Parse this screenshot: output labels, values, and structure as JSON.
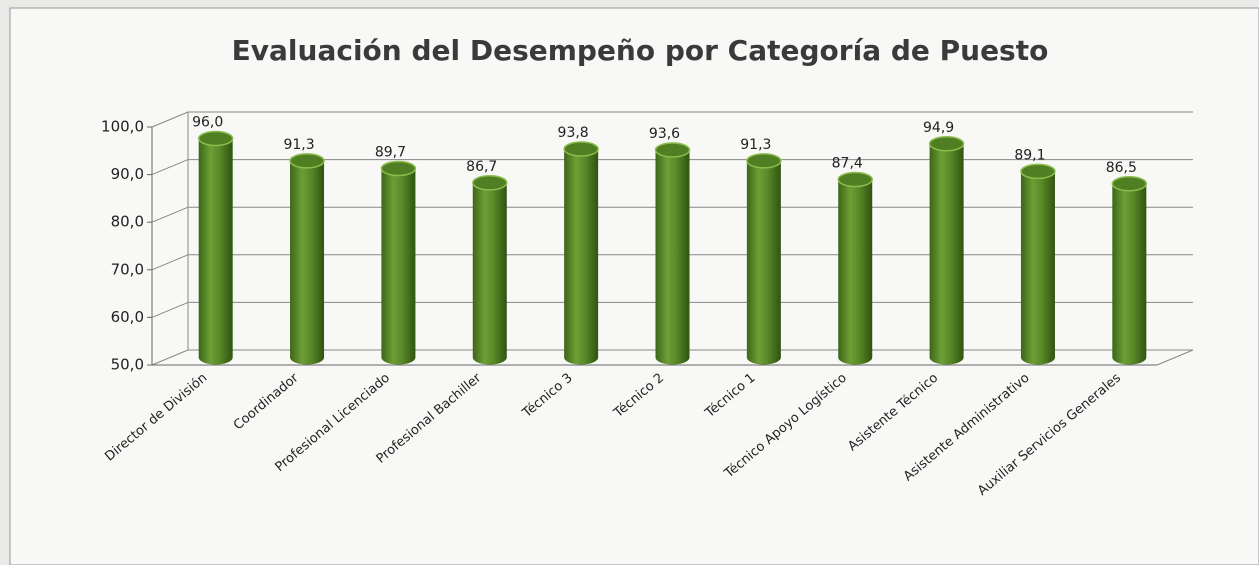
{
  "chart_data": {
    "type": "bar3d",
    "title": "Evaluación del Desempeño por Categoría de Puesto",
    "categories": [
      "Director de División",
      "Coordinador",
      "Profesional Licenciado",
      "Profesional Bachiller",
      "Técnico 3",
      "Técnico 2",
      "Técnico 1",
      "Técnico Apoyo Logístico",
      "Asistente Técnico",
      "Asistente Administrativo",
      "Auxiliar Servicios Generales"
    ],
    "values": [
      96.0,
      91.3,
      89.7,
      86.7,
      93.8,
      93.6,
      91.3,
      87.4,
      94.9,
      89.1,
      86.5
    ],
    "value_labels": [
      "96,0",
      "91,3",
      "89,7",
      "86,7",
      "93,8",
      "93,6",
      "91,3",
      "87,4",
      "94,9",
      "89,1",
      "86,5"
    ],
    "color": "#4f7f22",
    "ylim": [
      50,
      100
    ],
    "yticks": [
      {
        "value": 50,
        "label": "50,0"
      },
      {
        "value": 60,
        "label": "60,0"
      },
      {
        "value": 70,
        "label": "70,0"
      },
      {
        "value": 80,
        "label": "80,0"
      },
      {
        "value": 90,
        "label": "90,0"
      },
      {
        "value": 100,
        "label": "100,0"
      }
    ],
    "grid": true
  }
}
